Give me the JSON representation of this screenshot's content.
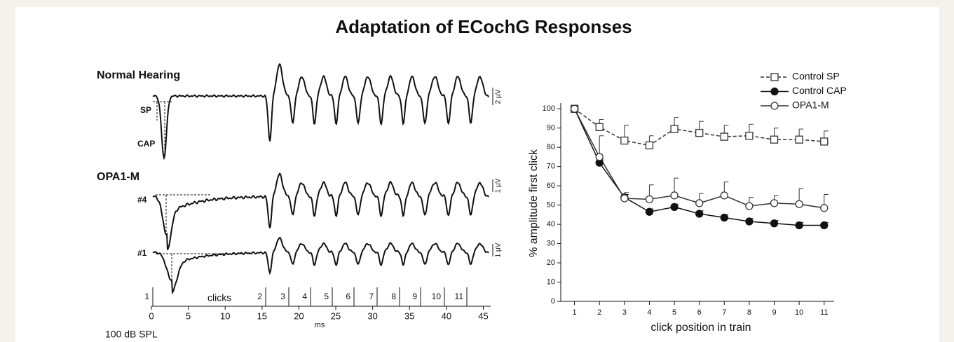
{
  "title": "Adaptation of ECochG Responses",
  "waveform_panel": {
    "group_1": "Normal Hearing",
    "group_2": "OPA1-M",
    "sp_label": "SP",
    "cap_label": "CAP",
    "trace_4": "#4",
    "trace_1": "#1",
    "scale_1": "2 µV",
    "scale_2": "1 µV",
    "scale_3": "1 µV",
    "clicks_label": "clicks",
    "click_numbers": [
      1,
      2,
      3,
      4,
      5,
      6,
      7,
      8,
      9,
      10,
      11
    ],
    "xlabel": "ms",
    "xlim": [
      0,
      46
    ],
    "xticks": [
      0,
      5,
      10,
      15,
      20,
      25,
      30,
      35,
      40,
      45
    ],
    "level": "100 dB SPL"
  },
  "chart_data": {
    "type": "line",
    "xlabel": "click position in train",
    "ylabel": "% amplitude first click",
    "x": [
      1,
      2,
      3,
      4,
      5,
      6,
      7,
      8,
      9,
      10,
      11
    ],
    "xlim": [
      0.45,
      11.4
    ],
    "xticks": [
      1,
      2,
      3,
      4,
      5,
      6,
      7,
      8,
      9,
      10,
      11
    ],
    "ylim": [
      0,
      103
    ],
    "yticks": [
      0,
      10,
      20,
      30,
      40,
      50,
      60,
      70,
      80,
      90,
      100
    ],
    "legend": "upper-right",
    "series": [
      {
        "name": "Control SP",
        "color": "#333333",
        "marker": "square-open",
        "dashed": true,
        "values": [
          100,
          90.5,
          83.5,
          81,
          89.5,
          87.5,
          85.5,
          86,
          84,
          84,
          83
        ],
        "errors": [
          0,
          4,
          8,
          5,
          6,
          6,
          6,
          6,
          6,
          5.5,
          5.5
        ]
      },
      {
        "name": "Control CAP",
        "color": "#111111",
        "marker": "circle-filled",
        "dashed": false,
        "values": [
          100,
          72,
          54,
          46.5,
          49,
          45.5,
          43.5,
          41.5,
          40.5,
          39.5,
          39.5
        ],
        "errors": [
          0,
          1.5,
          1.5,
          1.5,
          1.5,
          1.5,
          1.5,
          1.5,
          1.5,
          1.5,
          1.5
        ]
      },
      {
        "name": "OPA1-M",
        "color": "#333333",
        "marker": "circle-open",
        "dashed": false,
        "values": [
          100,
          75,
          53.5,
          53,
          55,
          51,
          55,
          49.5,
          51,
          50.5,
          48.5
        ],
        "errors": [
          0,
          11,
          3,
          7.5,
          9,
          5,
          7,
          4.5,
          4,
          8,
          7
        ]
      }
    ]
  }
}
